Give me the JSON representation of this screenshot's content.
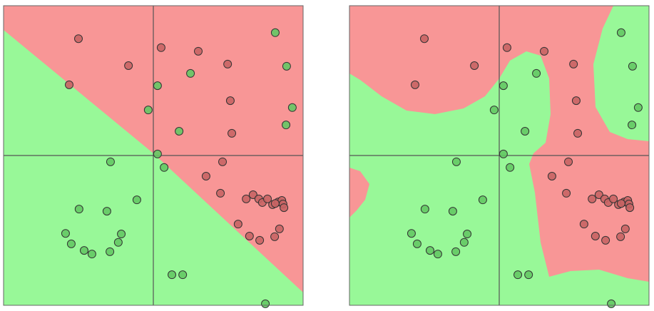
{
  "chart_data": {
    "type": "scatter",
    "xlim": [
      -5,
      5
    ],
    "ylim": [
      -5,
      5
    ],
    "series": [
      {
        "color": "#c86464",
        "x": [
          -2.5,
          -0.83,
          -2.81,
          0.26,
          1.5,
          2.48,
          2.57,
          2.62,
          2.31,
          1.76,
          2.24,
          3.1,
          3.33,
          3.52,
          3.64,
          3.98,
          4.17,
          4.29,
          4.33,
          4.36,
          4.07,
          2.83,
          3.21,
          3.55,
          4.05,
          4.21,
          3.81
        ],
        "values": [
          3.9,
          3.0,
          2.36,
          3.6,
          3.48,
          3.05,
          1.83,
          0.74,
          -0.21,
          -0.69,
          -1.26,
          -1.45,
          -1.31,
          -1.45,
          -1.57,
          -1.64,
          -1.55,
          -1.5,
          -1.62,
          -1.74,
          -1.6,
          -2.29,
          -2.69,
          -2.83,
          -2.71,
          -2.45,
          -1.45
        ]
      },
      {
        "color": "#64c864",
        "x": [
          4.07,
          4.45,
          1.24,
          0.14,
          -0.17,
          4.64,
          4.43,
          0.86,
          0.14,
          0.36,
          -1.43,
          -0.55,
          -2.48,
          -1.55,
          -2.93,
          -2.74,
          -2.31,
          -2.05,
          -1.45,
          -1.17,
          -1.07,
          0.62,
          0.98,
          3.74
        ],
        "values": [
          4.1,
          2.98,
          2.74,
          2.33,
          1.52,
          1.6,
          1.02,
          0.81,
          0.05,
          -0.4,
          -0.21,
          -1.48,
          -1.79,
          -1.86,
          -2.6,
          -2.95,
          -3.17,
          -3.29,
          -3.21,
          -2.9,
          -2.62,
          -3.98,
          -3.98,
          -4.95
        ]
      }
    ]
  }
}
